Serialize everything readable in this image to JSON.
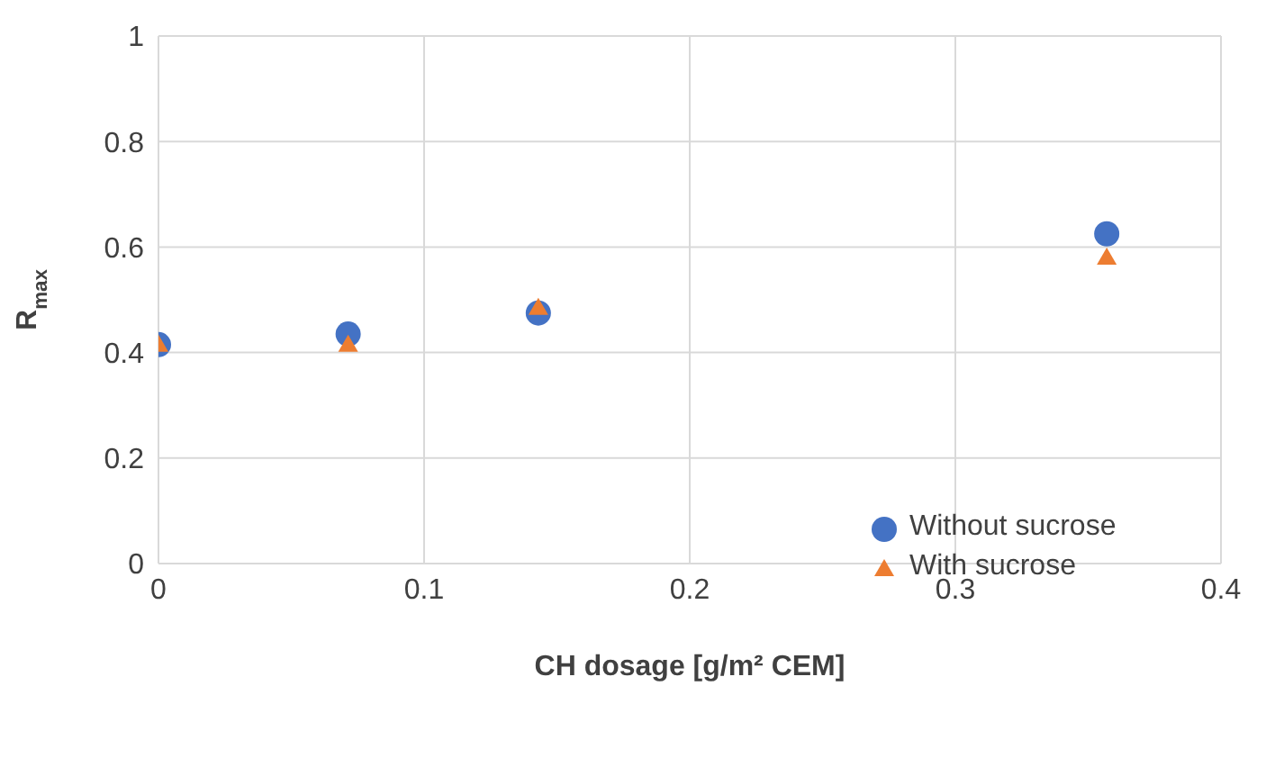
{
  "chart_data": {
    "type": "scatter",
    "xlabel": "CH dosage [g/m² CEM]",
    "ylabel": "R$_{max}$",
    "xlim": [
      0,
      0.4
    ],
    "xticks": [
      0,
      0.1,
      0.2,
      0.3,
      0.4
    ],
    "ylim": [
      0,
      1
    ],
    "yticks": [
      0,
      0.2,
      0.4,
      0.6,
      0.8,
      1
    ],
    "grid": true,
    "legend": "bottom right",
    "series": [
      {
        "name": "Without sucrose",
        "color": "#4472c4",
        "marker": "circle",
        "x": [
          0,
          0.0714,
          0.143,
          0.357
        ],
        "values": [
          0.415,
          0.435,
          0.475,
          0.625
        ]
      },
      {
        "name": "With sucrose",
        "color": "#ed7d31",
        "marker": "triangle",
        "x": [
          0,
          0.0714,
          0.143,
          0.357
        ],
        "values": [
          0.415,
          0.415,
          0.485,
          0.58
        ]
      }
    ]
  }
}
